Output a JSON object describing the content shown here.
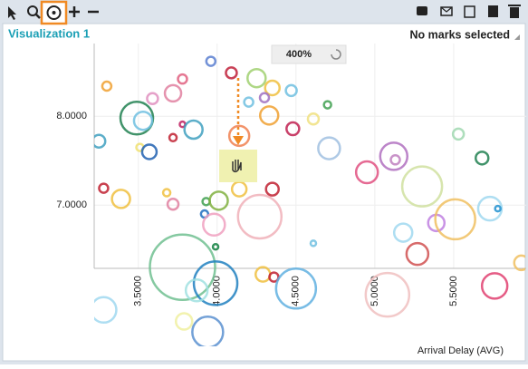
{
  "panel": {
    "title": "Visualization 1",
    "status": "No marks selected",
    "zoom": "400%"
  },
  "chart_data": {
    "type": "scatter",
    "x_label": "Arrival Delay (AVG)",
    "xlim": [
      3.22,
      5.96
    ],
    "ylim": [
      5.43,
      8.82
    ],
    "xticks": [
      {
        "value": 3.5,
        "label": "3.5000"
      },
      {
        "value": 4.0,
        "label": "4.0000"
      },
      {
        "value": 4.5,
        "label": "4.5000"
      },
      {
        "value": 5.0,
        "label": "5.0000"
      },
      {
        "value": 5.5,
        "label": "5.5000"
      }
    ],
    "yticks": [
      {
        "value": 7.0,
        "label": "7.0000"
      },
      {
        "value": 8.0,
        "label": "8.0000"
      }
    ],
    "grid": true,
    "x": [
      3.3,
      3.96,
      4.09,
      4.25,
      3.78,
      3.59,
      3.72,
      4.2,
      4.35,
      4.3,
      4.47,
      4.7,
      3.49,
      3.53,
      3.25,
      3.78,
      3.85,
      3.72,
      3.51,
      3.57,
      4.14,
      4.48,
      4.61,
      4.33,
      4.71,
      5.12,
      5.13,
      4.95,
      5.53,
      5.68,
      5.3,
      3.28,
      3.39,
      3.68,
      3.72,
      3.93,
      4.01,
      4.14,
      4.35,
      3.92,
      3.98,
      4.27,
      5.18,
      5.39,
      5.51,
      5.73,
      5.78,
      5.27,
      4.61,
      3.99,
      3.78,
      3.99,
      4.29,
      4.36,
      3.87,
      4.5,
      5.08,
      5.76,
      3.28,
      3.79,
      3.94,
      5.93
    ],
    "y": [
      8.34,
      8.62,
      8.49,
      8.43,
      8.42,
      8.2,
      8.26,
      8.16,
      8.32,
      8.21,
      8.29,
      8.13,
      7.98,
      7.95,
      7.72,
      7.91,
      7.85,
      7.76,
      7.65,
      7.6,
      7.78,
      7.86,
      7.97,
      8.01,
      7.64,
      7.55,
      7.51,
      7.37,
      7.8,
      7.53,
      7.21,
      7.19,
      7.07,
      7.14,
      7.01,
      7.04,
      7.05,
      7.18,
      7.18,
      6.9,
      6.78,
      6.87,
      6.69,
      6.8,
      6.84,
      6.96,
      6.96,
      6.45,
      6.57,
      6.53,
      6.3,
      6.12,
      6.22,
      6.19,
      6.04,
      6.06,
      5.99,
      6.09,
      5.82,
      5.69,
      5.57,
      6.35
    ],
    "sizes": [
      5,
      5,
      6,
      10,
      5,
      6,
      9,
      5,
      8,
      5,
      6,
      4,
      18,
      10,
      7,
      3,
      10,
      4,
      4,
      8,
      11,
      7,
      6,
      10,
      12,
      15,
      5,
      12,
      6,
      7,
      22,
      5,
      10,
      4,
      6,
      4,
      10,
      8,
      7,
      4,
      12,
      24,
      10,
      9,
      22,
      13,
      3,
      12,
      3,
      3,
      36,
      24,
      8,
      5,
      12,
      22,
      24,
      14,
      14,
      9,
      17,
      8
    ],
    "colors": [
      "#f0a030",
      "#5b7fd0",
      "#c0203a",
      "#a0d070",
      "#e06080",
      "#e090c0",
      "#e080a0",
      "#70c0e0",
      "#f0c040",
      "#a070c0",
      "#70c0e0",
      "#40a050",
      "#208050",
      "#70c0e0",
      "#40a0c0",
      "#c02060",
      "#40a0c0",
      "#c02030",
      "#f0e070",
      "#2060b0",
      "#f08050",
      "#c02050",
      "#f0e080",
      "#f0a030",
      "#a0c0e0",
      "#b070c0",
      "#c080c0",
      "#e05080",
      "#a0d8b0",
      "#208050",
      "#d0e0a0",
      "#c02030",
      "#f0c040",
      "#f0c040",
      "#e080a0",
      "#40a050",
      "#80b040",
      "#f0c040",
      "#c02030",
      "#2070c0",
      "#f0a0c0",
      "#f0b0b8",
      "#a0d8f0",
      "#c080e0",
      "#f0c060",
      "#a0d8f0",
      "#2090d0",
      "#d05050",
      "#70c0e0",
      "#108040",
      "#70c090",
      "#2080c0",
      "#f0c040",
      "#c02030",
      "#a0e0e0",
      "#60b0e0",
      "#f0c0c0",
      "#e04070",
      "#a0d8f0",
      "#f0f0a0",
      "#5b90d0",
      "#f0c060"
    ]
  }
}
